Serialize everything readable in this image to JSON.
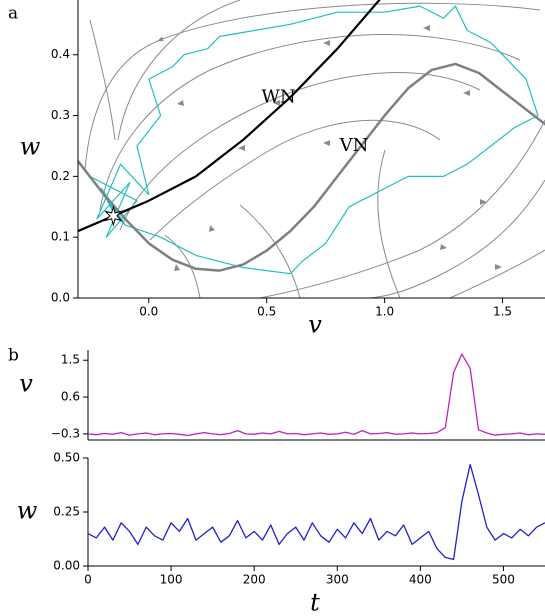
{
  "chart_data": [
    {
      "type": "line",
      "panel_label": "a",
      "x_label": "v",
      "y_label": "w",
      "xlim": [
        -0.3,
        1.68
      ],
      "ylim": [
        0,
        0.49
      ],
      "xticks": [
        {
          "value": 0,
          "label": "0.0"
        },
        0.5,
        {
          "value": 1,
          "label": "1.0"
        },
        1.5
      ],
      "yticks": [
        {
          "value": 0,
          "label": "0.0"
        },
        0.1,
        0.2,
        0.3,
        0.4
      ],
      "series": [
        {
          "color": "#20c0c0",
          "width": 1.2,
          "x": [
            -0.15,
            -0.2,
            -0.1,
            -0.25,
            -0.05,
            -0.18,
            -0.08,
            -0.22,
            -0.12,
            0.0,
            -0.05,
            0.05,
            0.0,
            0.1,
            0.15,
            0.25,
            0.3,
            0.45,
            0.6,
            0.8,
            1.0,
            1.15,
            1.25,
            1.3,
            1.35,
            1.45,
            1.5,
            1.6,
            1.65,
            1.55,
            1.45,
            1.35,
            1.25,
            1.1,
            1.0,
            0.9,
            0.85,
            0.8,
            0.75,
            0.65,
            0.6,
            0.4,
            0.2,
            0.05,
            -0.1,
            -0.15
          ],
          "values": [
            0.14,
            0.18,
            0.12,
            0.2,
            0.16,
            0.1,
            0.19,
            0.13,
            0.22,
            0.17,
            0.25,
            0.3,
            0.36,
            0.38,
            0.4,
            0.41,
            0.43,
            0.44,
            0.45,
            0.47,
            0.47,
            0.48,
            0.46,
            0.48,
            0.44,
            0.42,
            0.4,
            0.36,
            0.3,
            0.28,
            0.25,
            0.22,
            0.2,
            0.2,
            0.18,
            0.16,
            0.15,
            0.12,
            0.09,
            0.06,
            0.04,
            0.05,
            0.07,
            0.1,
            0.12,
            0.14
          ]
        },
        {
          "color": "#808080",
          "width": 2.5,
          "x": [
            -0.3,
            -0.2,
            -0.1,
            0.0,
            0.1,
            0.2,
            0.3,
            0.4,
            0.5,
            0.6,
            0.7,
            0.8,
            0.9,
            1.0,
            1.1,
            1.2,
            1.3,
            1.4,
            1.5,
            1.6,
            1.7
          ],
          "values": [
            0.225,
            0.175,
            0.13,
            0.09,
            0.063,
            0.048,
            0.045,
            0.055,
            0.078,
            0.11,
            0.15,
            0.2,
            0.25,
            0.3,
            0.345,
            0.375,
            0.385,
            0.37,
            0.34,
            0.31,
            0.28
          ]
        },
        {
          "color": "#000000",
          "width": 2.2,
          "x": [
            -0.3,
            -0.15,
            0.0,
            0.2,
            0.4,
            0.6,
            0.8,
            1.0
          ],
          "values": [
            0.11,
            0.135,
            0.16,
            0.2,
            0.26,
            0.33,
            0.41,
            0.5
          ]
        }
      ],
      "fixed_point": [
        -0.15,
        0.135
      ],
      "annotations": [
        {
          "text": "WN",
          "x": 0.55,
          "y": 0.33
        },
        {
          "text": "VN",
          "x": 0.87,
          "y": 0.25
        }
      ]
    },
    {
      "type": "line",
      "panel_label": "b",
      "y_label": "v",
      "xlim": [
        0,
        550
      ],
      "ylim": [
        -0.45,
        1.75
      ],
      "yticks": [
        {
          "value": -0.3,
          "label": "−0.3"
        },
        0.6,
        1.5
      ],
      "series": [
        {
          "color": "#c020c0",
          "width": 1.3,
          "x": [
            0,
            10,
            20,
            30,
            40,
            50,
            60,
            70,
            80,
            90,
            100,
            110,
            120,
            130,
            140,
            150,
            160,
            170,
            180,
            190,
            200,
            210,
            220,
            230,
            240,
            250,
            260,
            270,
            280,
            290,
            300,
            310,
            320,
            330,
            340,
            350,
            360,
            370,
            380,
            390,
            400,
            410,
            420,
            430,
            440,
            450,
            460,
            470,
            480,
            490,
            500,
            510,
            520,
            530,
            540,
            550
          ],
          "values": [
            -0.3,
            -0.32,
            -0.29,
            -0.31,
            -0.27,
            -0.33,
            -0.3,
            -0.28,
            -0.32,
            -0.3,
            -0.29,
            -0.31,
            -0.34,
            -0.3,
            -0.27,
            -0.3,
            -0.32,
            -0.29,
            -0.22,
            -0.3,
            -0.31,
            -0.28,
            -0.3,
            -0.24,
            -0.3,
            -0.29,
            -0.32,
            -0.3,
            -0.28,
            -0.31,
            -0.3,
            -0.26,
            -0.31,
            -0.22,
            -0.3,
            -0.29,
            -0.27,
            -0.31,
            -0.3,
            -0.28,
            -0.3,
            -0.29,
            -0.27,
            -0.15,
            1.2,
            1.65,
            1.3,
            -0.2,
            -0.28,
            -0.33,
            -0.31,
            -0.3,
            -0.28,
            -0.32,
            -0.3,
            -0.31
          ]
        }
      ]
    },
    {
      "type": "line",
      "x_label": "t",
      "y_label": "w",
      "xlim": [
        0,
        550
      ],
      "ylim": [
        0,
        0.5
      ],
      "xticks": [
        0,
        100,
        200,
        300,
        400,
        500
      ],
      "yticks": [
        {
          "value": 0,
          "label": "0.00"
        },
        0.25,
        {
          "value": 0.5,
          "label": "0.50"
        }
      ],
      "series": [
        {
          "color": "#2020d0",
          "width": 1.3,
          "x": [
            0,
            10,
            20,
            30,
            40,
            50,
            60,
            70,
            80,
            90,
            100,
            110,
            120,
            130,
            140,
            150,
            160,
            170,
            180,
            190,
            200,
            210,
            220,
            230,
            240,
            250,
            260,
            270,
            280,
            290,
            300,
            310,
            320,
            330,
            340,
            350,
            360,
            370,
            380,
            390,
            400,
            410,
            420,
            430,
            440,
            450,
            460,
            470,
            480,
            490,
            500,
            510,
            520,
            530,
            540,
            550
          ],
          "values": [
            0.15,
            0.13,
            0.18,
            0.12,
            0.2,
            0.16,
            0.1,
            0.18,
            0.14,
            0.12,
            0.2,
            0.16,
            0.22,
            0.12,
            0.15,
            0.18,
            0.11,
            0.14,
            0.21,
            0.13,
            0.16,
            0.12,
            0.19,
            0.1,
            0.15,
            0.18,
            0.12,
            0.2,
            0.14,
            0.11,
            0.17,
            0.13,
            0.2,
            0.15,
            0.22,
            0.12,
            0.16,
            0.14,
            0.19,
            0.1,
            0.13,
            0.16,
            0.08,
            0.04,
            0.03,
            0.3,
            0.47,
            0.33,
            0.18,
            0.12,
            0.15,
            0.13,
            0.17,
            0.14,
            0.18,
            0.2
          ]
        }
      ]
    }
  ]
}
